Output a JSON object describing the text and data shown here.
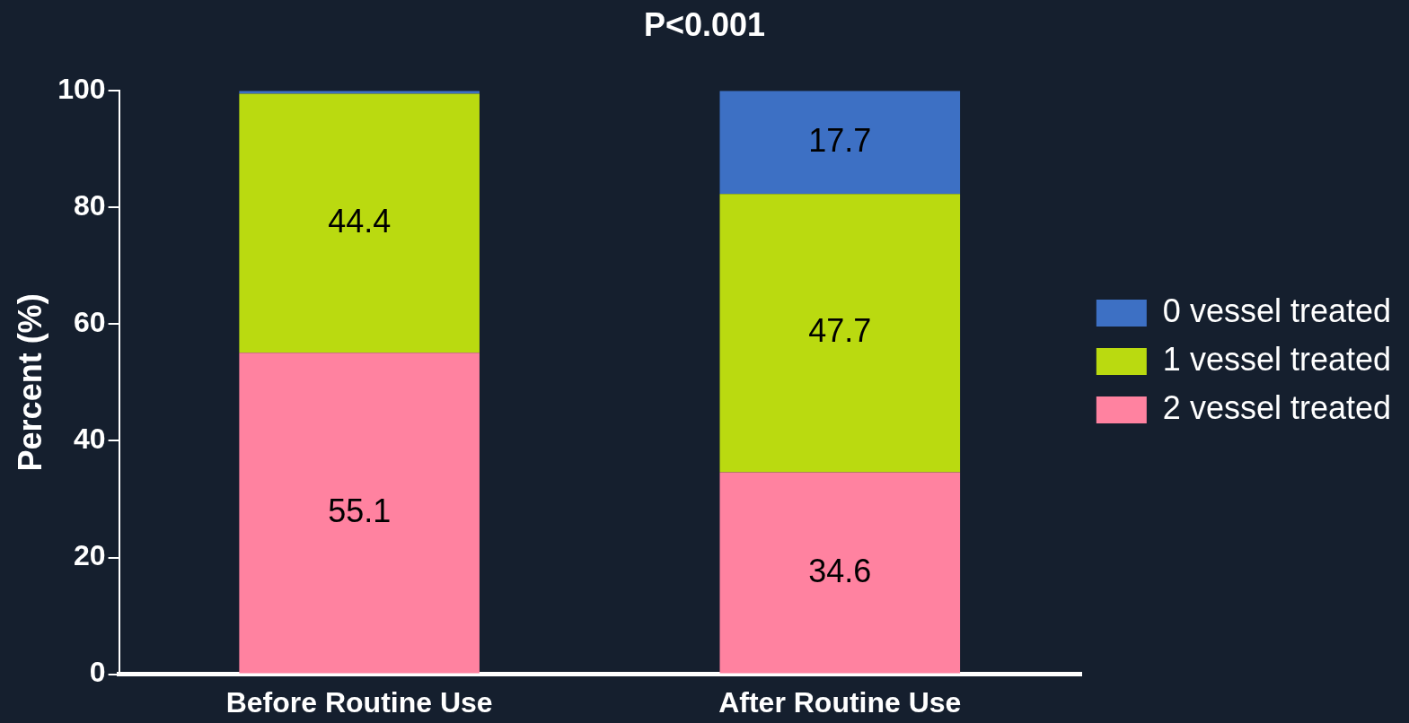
{
  "chart_data": {
    "type": "bar",
    "title": "P<0.001",
    "ylabel": "Percent (%)",
    "categories": [
      "Before Routine Use",
      "After Routine Use"
    ],
    "stacked": true,
    "ylim": [
      0,
      100
    ],
    "yticks": [
      0,
      20,
      40,
      60,
      80,
      100
    ],
    "grid": false,
    "legend": "right",
    "series": [
      {
        "name": "2 vessel treated",
        "color": "#ff82a0",
        "values": [
          55.1,
          34.6
        ],
        "value_labels": [
          "55.1",
          "34.6"
        ]
      },
      {
        "name": "1 vessel treated",
        "color": "#bada10",
        "values": [
          44.4,
          47.7
        ],
        "value_labels": [
          "44.4",
          "47.7"
        ]
      },
      {
        "name": "0 vessel treated",
        "color": "#3d70c4",
        "values": [
          0.5,
          17.7
        ],
        "value_labels": [
          null,
          "17.7"
        ]
      }
    ]
  }
}
